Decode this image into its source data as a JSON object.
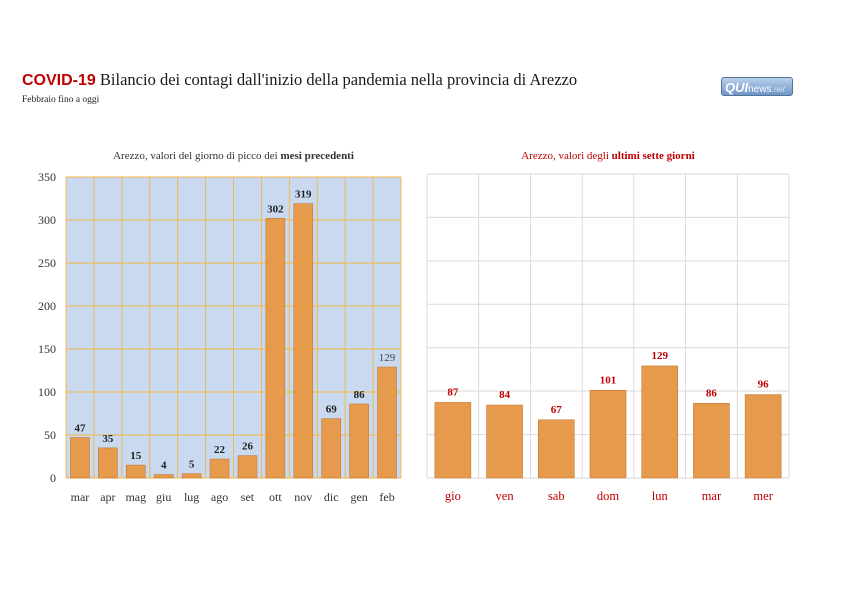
{
  "header": {
    "tag": "COVID-19",
    "title": "Bilancio dei contagi dall'inizio della pandemia nella provincia di Arezzo",
    "subtitle": "Febbraio fino a oggi",
    "logo": {
      "qui": "QUI",
      "news": "news",
      "net": ".net"
    }
  },
  "colors": {
    "bar": "#e59a4c",
    "bar_stroke": "#c67a33",
    "left_plot_bg": "#c9d9f0",
    "left_grid": "#f2b640",
    "right_grid": "#d9d9d9",
    "accent_red": "#c00000"
  },
  "chart_data": [
    {
      "type": "bar",
      "title_prefix": "Arezzo, valori del giorno di picco dei ",
      "title_bold": "mesi precedenti",
      "categories": [
        "mar",
        "apr",
        "mag",
        "giu",
        "lug",
        "ago",
        "set",
        "ott",
        "nov",
        "dic",
        "gen",
        "feb"
      ],
      "values": [
        47,
        35,
        15,
        4,
        5,
        22,
        26,
        302,
        319,
        69,
        86,
        129
      ],
      "ylim": [
        0,
        350
      ],
      "yticks": [
        0,
        50,
        100,
        150,
        200,
        250,
        300,
        350
      ],
      "grid": true
    },
    {
      "type": "bar",
      "title_prefix": "Arezzo, valori degli ",
      "title_bold": "ultimi sette giorni",
      "categories": [
        "gio",
        "ven",
        "sab",
        "dom",
        "lun",
        "mar",
        "mer"
      ],
      "values": [
        87,
        84,
        67,
        101,
        129,
        86,
        96
      ],
      "ylim": [
        0,
        350
      ],
      "grid": true
    }
  ]
}
